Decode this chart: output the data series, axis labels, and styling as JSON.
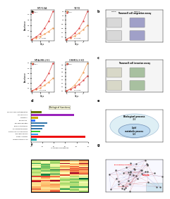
{
  "panel_a": {
    "plots": [
      {
        "title": "MCF10A",
        "lines": [
          {
            "label": "Ctrl",
            "x": [
              0,
              1,
              2,
              3,
              4,
              5
            ],
            "y": [
              0.1,
              0.15,
              0.2,
              0.28,
              0.38,
              0.5
            ],
            "color": "#f4a460"
          },
          {
            "label": "ORMDL3",
            "x": [
              0,
              1,
              2,
              3,
              4,
              5
            ],
            "y": [
              0.1,
              0.18,
              0.3,
              0.5,
              0.75,
              1.1
            ],
            "color": "#e05050"
          }
        ],
        "pval": "p = 0.001",
        "xlabel": "Days",
        "ylabel": "Absorbance"
      },
      {
        "title": "T47D",
        "lines": [
          {
            "label": "Ctrl",
            "x": [
              0,
              1,
              2,
              3,
              4,
              5
            ],
            "y": [
              0.1,
              0.16,
              0.25,
              0.38,
              0.55,
              0.75
            ],
            "color": "#f4a460"
          },
          {
            "label": "ORMDL3",
            "x": [
              0,
              1,
              2,
              3,
              4,
              5
            ],
            "y": [
              0.1,
              0.2,
              0.38,
              0.6,
              0.95,
              1.4
            ],
            "color": "#e05050"
          }
        ],
        "pval": "p < 0.05",
        "xlabel": "Days",
        "ylabel": ""
      },
      {
        "title": "MDA-MB-231",
        "lines": [
          {
            "label": "Ctrl",
            "x": [
              0,
              1,
              2,
              3,
              4,
              5
            ],
            "y": [
              0.1,
              0.15,
              0.22,
              0.32,
              0.45,
              0.6
            ],
            "color": "#f4a460"
          },
          {
            "label": "ORMDL3",
            "x": [
              0,
              1,
              2,
              3,
              4,
              5
            ],
            "y": [
              0.1,
              0.18,
              0.32,
              0.52,
              0.8,
              1.2
            ],
            "color": "#e05050"
          }
        ],
        "pval": "p < 0.05",
        "xlabel": "Days",
        "ylabel": "Absorbance"
      },
      {
        "title": "ORMDL3 KO",
        "lines": [
          {
            "label": "Ctrl",
            "x": [
              0,
              1,
              2,
              3,
              4,
              5
            ],
            "y": [
              0.1,
              0.16,
              0.26,
              0.4,
              0.6,
              0.85
            ],
            "color": "#f4a460"
          },
          {
            "label": "ORMDL3",
            "x": [
              0,
              1,
              2,
              3,
              4,
              5
            ],
            "y": [
              0.1,
              0.14,
              0.2,
              0.28,
              0.38,
              0.5
            ],
            "color": "#e05050"
          }
        ],
        "pval": "p < 0.05",
        "xlabel": "Days",
        "ylabel": ""
      }
    ]
  },
  "panel_d": {
    "title": "Biological functions",
    "categories": [
      "Immune system process",
      "Metabolic process",
      "Biological adhesion",
      "Multicellular organism process",
      "Developmental process",
      "Response to stimulus",
      "Biological regulation",
      "Reproduction",
      "Localization",
      "Cellular process",
      "Cellular component organization"
    ],
    "values": [
      5,
      48,
      6,
      8,
      10,
      12,
      14,
      4,
      6,
      38,
      9
    ],
    "colors": [
      "#00aaaa",
      "#ee1111",
      "#3399ff",
      "#33cc33",
      "#3377aa",
      "#3377aa",
      "#3377aa",
      "#3377ff",
      "#ccaa00",
      "#9922bb",
      "#667700"
    ],
    "xlabel": "% of genes represented"
  },
  "panel_e": {
    "outer_label": "Biological process",
    "outer_count": "718",
    "inner_label": "Lipid\nmetabolic process",
    "overlap": "128"
  },
  "panel_f": {
    "description": "heatmap with red-green colors, clustered"
  },
  "panel_g": {
    "description": "network diagram"
  },
  "bg_color": "#ffffff"
}
